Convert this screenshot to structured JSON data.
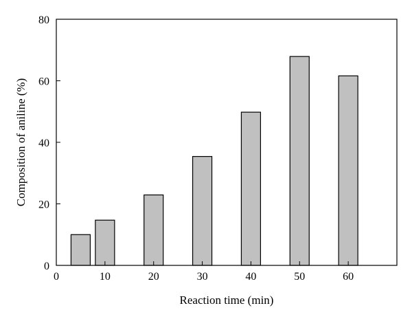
{
  "chart_data": {
    "type": "bar",
    "title": "",
    "xlabel": "Reaction time (min)",
    "ylabel": "Composition of aniline (%)",
    "x": [
      5,
      10,
      20,
      30,
      40,
      50,
      60
    ],
    "values": [
      10,
      14.7,
      22.9,
      35.4,
      49.8,
      67.9,
      61.6
    ],
    "xlim": [
      0,
      70
    ],
    "ylim": [
      0,
      80
    ],
    "xticks": [
      0,
      10,
      20,
      30,
      40,
      50,
      60
    ],
    "yticks": [
      0,
      20,
      40,
      60,
      80
    ],
    "bar_color": "#c0c0c0",
    "bar_edge_color": "#000000",
    "grid": false,
    "legend": "none"
  }
}
